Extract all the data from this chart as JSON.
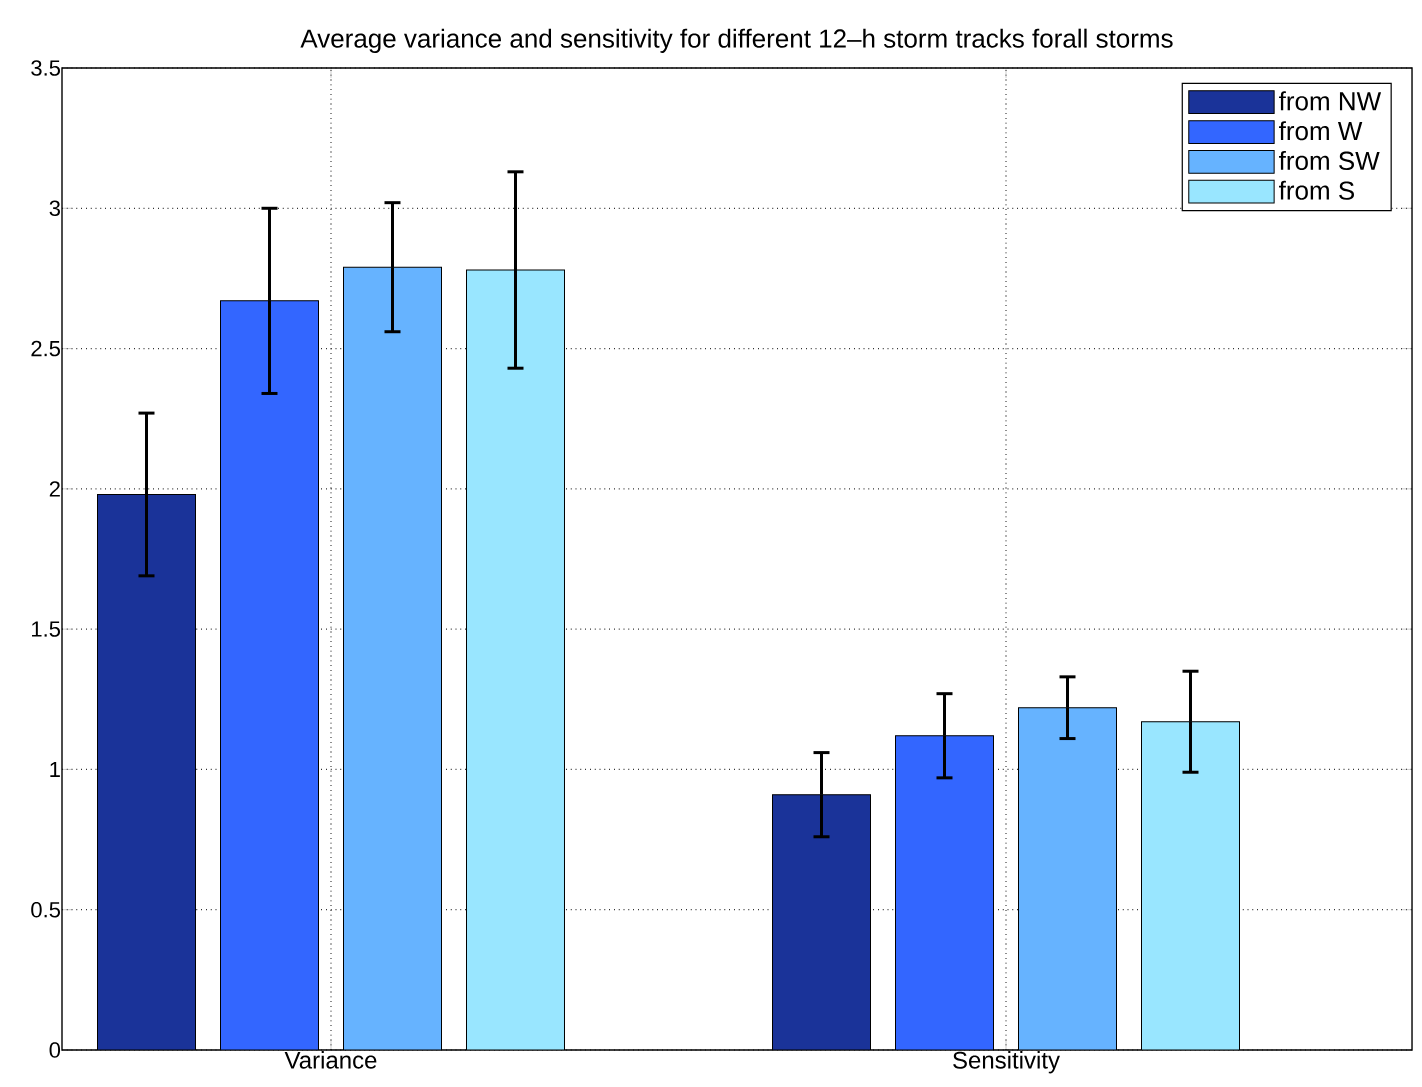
{
  "chart_data": {
    "type": "bar",
    "title": "Average variance and sensitivity for different 12–h storm tracks forall storms",
    "categories": [
      "Variance",
      "Sensitivity"
    ],
    "series": [
      {
        "name": "from NW",
        "color": "#1a3399",
        "values": [
          1.98,
          0.91
        ],
        "errors": [
          0.29,
          0.15
        ]
      },
      {
        "name": "from W",
        "color": "#3366ff",
        "values": [
          2.67,
          1.12
        ],
        "errors": [
          0.33,
          0.15
        ]
      },
      {
        "name": "from SW",
        "color": "#66b3ff",
        "values": [
          2.79,
          1.22
        ],
        "errors": [
          0.23,
          0.11
        ]
      },
      {
        "name": "from S",
        "color": "#99e6ff",
        "values": [
          2.78,
          1.17
        ],
        "errors": [
          0.35,
          0.18
        ]
      }
    ],
    "ylim": [
      0,
      3.5
    ],
    "yticks": [
      0,
      0.5,
      1,
      1.5,
      2,
      2.5,
      3,
      3.5
    ],
    "grid": true,
    "legend": "top right"
  }
}
